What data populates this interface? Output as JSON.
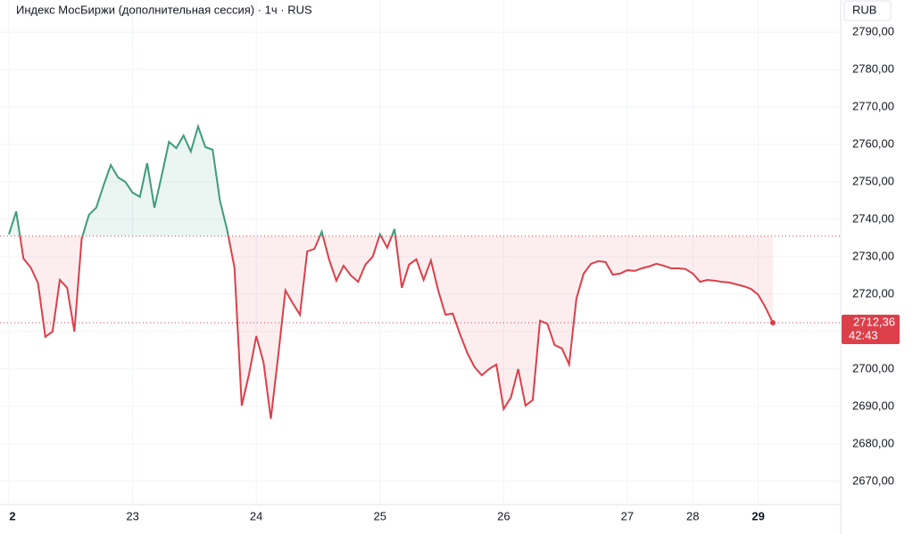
{
  "chart_data": {
    "type": "line",
    "title": "Индекс МосБиржи (дополнительная сессия) · 1ч · RUS",
    "currency": "RUB",
    "categories": [
      "2",
      null,
      null,
      null,
      null,
      null,
      null,
      null,
      null,
      null,
      null,
      null,
      null,
      null,
      null,
      null,
      null,
      "23",
      null,
      null,
      null,
      null,
      null,
      null,
      null,
      null,
      null,
      null,
      null,
      null,
      null,
      null,
      null,
      null,
      "24",
      null,
      null,
      null,
      null,
      null,
      null,
      null,
      null,
      null,
      null,
      null,
      null,
      null,
      null,
      null,
      null,
      "25",
      null,
      null,
      null,
      null,
      null,
      null,
      null,
      null,
      null,
      null,
      null,
      null,
      null,
      null,
      null,
      null,
      "26",
      null,
      null,
      null,
      null,
      null,
      null,
      null,
      null,
      null,
      null,
      null,
      null,
      null,
      null,
      null,
      null,
      "27",
      null,
      null,
      null,
      null,
      null,
      null,
      null,
      null,
      "28",
      null,
      null,
      null,
      null,
      null,
      null,
      null,
      null,
      "29",
      null,
      null
    ],
    "values": [
      2736.0,
      2742.1,
      2729.5,
      2727.1,
      2722.9,
      2708.6,
      2710.0,
      2723.8,
      2721.7,
      2710.0,
      2734.8,
      2741.2,
      2743.1,
      2749.0,
      2754.5,
      2751.2,
      2750.0,
      2747.1,
      2746.0,
      2755.0,
      2743.1,
      2751.7,
      2760.7,
      2759.0,
      2762.4,
      2758.1,
      2764.8,
      2759.3,
      2758.6,
      2745.0,
      2737.1,
      2727.1,
      2690.2,
      2698.6,
      2708.8,
      2701.7,
      2686.7,
      2703.3,
      2721.0,
      2717.6,
      2714.5,
      2731.4,
      2732.1,
      2736.7,
      2729.3,
      2723.6,
      2727.6,
      2725.0,
      2723.3,
      2727.9,
      2730.0,
      2736.0,
      2732.4,
      2737.4,
      2721.7,
      2727.9,
      2729.3,
      2723.8,
      2729.0,
      2721.0,
      2714.5,
      2714.8,
      2709.3,
      2704.3,
      2700.5,
      2698.3,
      2700.0,
      2701.2,
      2689.3,
      2692.4,
      2700.0,
      2690.2,
      2691.7,
      2712.9,
      2712.1,
      2706.4,
      2705.5,
      2701.2,
      2718.8,
      2725.5,
      2728.1,
      2728.8,
      2728.6,
      2725.2,
      2725.5,
      2726.4,
      2726.2,
      2726.9,
      2727.4,
      2728.1,
      2727.6,
      2726.9,
      2726.9,
      2726.7,
      2725.5,
      2723.3,
      2723.8,
      2723.6,
      2723.3,
      2723.1,
      2722.6,
      2722.1,
      2721.4,
      2719.8,
      2716.4,
      2712.36
    ],
    "last_value_label": "2712,36",
    "countdown": "42:43",
    "baseline": 2735.5,
    "up_color": "#3f9b7c",
    "down_color": "#dc3f4a",
    "ylim": [
      2664,
      2798.6
    ],
    "yticks": [
      {
        "value": 2670,
        "label": "2670,00"
      },
      {
        "value": 2680,
        "label": "2680,00"
      },
      {
        "value": 2690,
        "label": "2690,00"
      },
      {
        "value": 2700,
        "label": "2700,00"
      },
      {
        "value": 2710,
        "label": "2710,00"
      },
      {
        "value": 2720,
        "label": "2720,00"
      },
      {
        "value": 2730,
        "label": "2730,00"
      },
      {
        "value": 2740,
        "label": "2740,00"
      },
      {
        "value": 2750,
        "label": "2750,00"
      },
      {
        "value": 2760,
        "label": "2760,00"
      },
      {
        "value": 2770,
        "label": "2770,00"
      },
      {
        "value": 2780,
        "label": "2780,00"
      },
      {
        "value": 2790,
        "label": "2790,00"
      }
    ],
    "grid": true
  }
}
